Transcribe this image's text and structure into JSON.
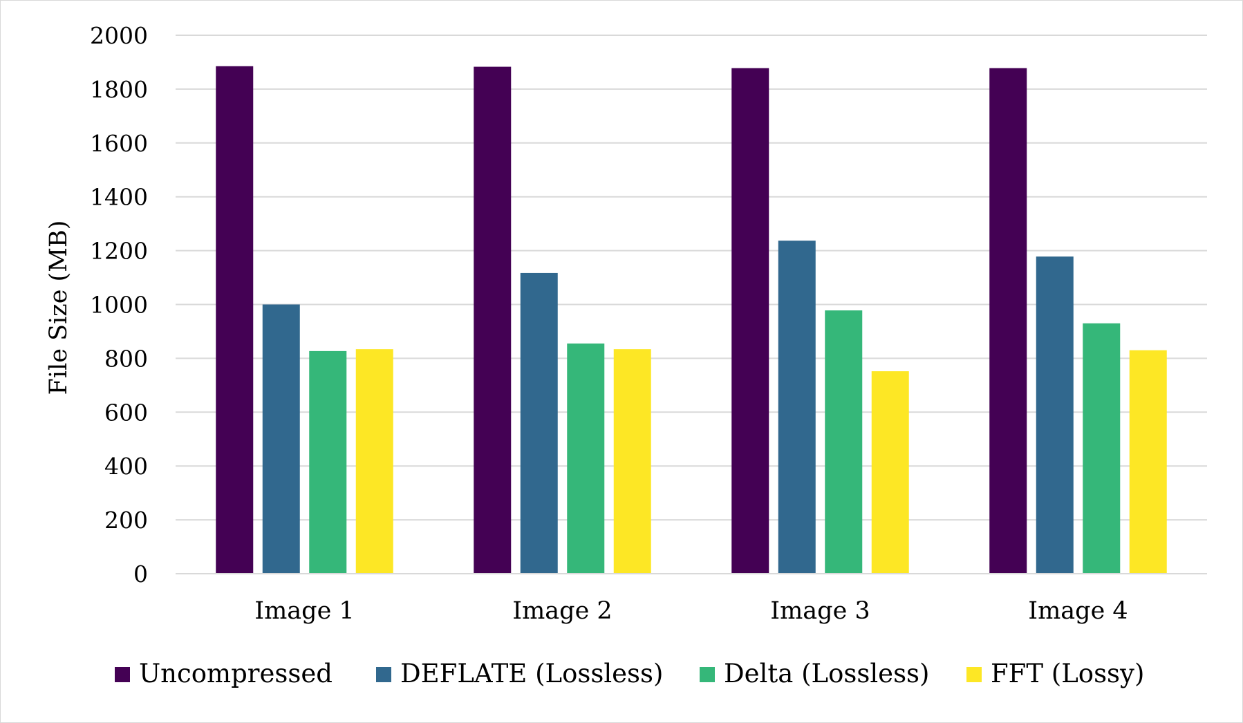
{
  "chart_data": {
    "type": "bar",
    "title": "",
    "xlabel": "",
    "ylabel": "File Size (MB)",
    "ylim": [
      0,
      2000
    ],
    "yticks": [
      0,
      200,
      400,
      600,
      800,
      1000,
      1200,
      1400,
      1600,
      1800,
      2000
    ],
    "grid": true,
    "legend_position": "bottom",
    "categories": [
      "Image 1",
      "Image 2",
      "Image 3",
      "Image 4"
    ],
    "series": [
      {
        "name": "Uncompressed",
        "color": "#440154",
        "values": [
          1885,
          1883,
          1878,
          1878
        ]
      },
      {
        "name": "DEFLATE (Lossless)",
        "color": "#31688e",
        "values": [
          1000,
          1117,
          1237,
          1178
        ]
      },
      {
        "name": "Delta (Lossless)",
        "color": "#35b779",
        "values": [
          827,
          855,
          978,
          930
        ]
      },
      {
        "name": "FFT (Lossy)",
        "color": "#fde725",
        "values": [
          834,
          834,
          752,
          830
        ]
      }
    ]
  }
}
